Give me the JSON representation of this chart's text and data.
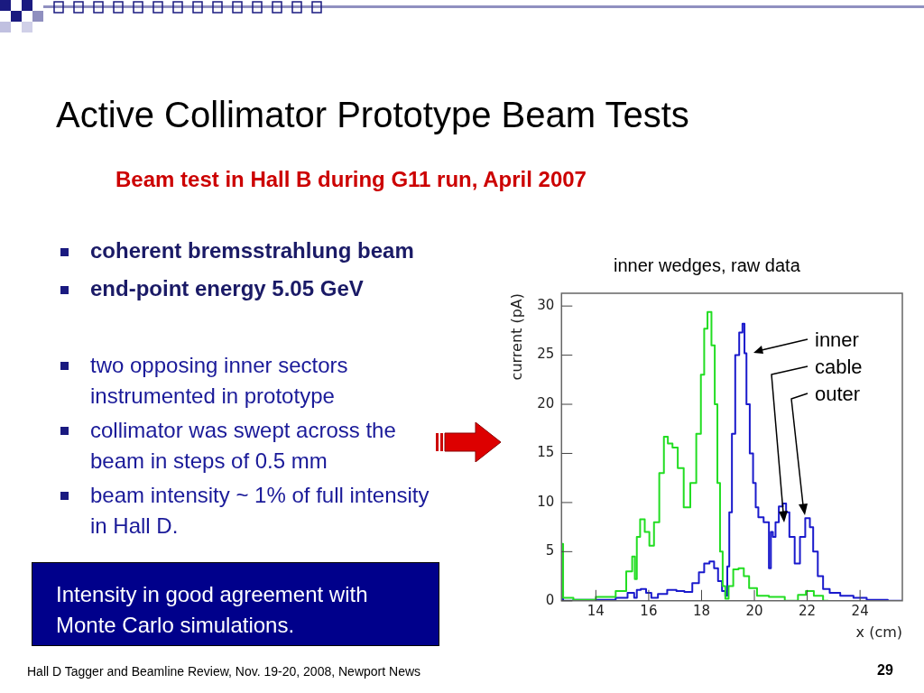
{
  "chart_data": {
    "type": "step",
    "title": "Active Collimator Prototype Beam Tests",
    "subtitle": "Beam test in Hall B during G11 run, April 2007",
    "xlabel": "x (cm)",
    "ylabel": "current (pA)",
    "xlim": [
      12.7,
      25.6
    ],
    "xticks": [
      14,
      16,
      18,
      20,
      22,
      24
    ],
    "ylim": [
      0,
      31.3
    ],
    "yticks": [
      0,
      5,
      10,
      15,
      20,
      25,
      30
    ],
    "grid": false,
    "legend": false,
    "series": [
      {
        "color": "#22dd22",
        "x": [
          12.72,
          12.8,
          13.5,
          14.5,
          15.0,
          15.3,
          15.45,
          15.5,
          15.6,
          15.75,
          15.95,
          16.1,
          16.3,
          16.5,
          16.65,
          16.8,
          17.0,
          17.2,
          17.45,
          17.7,
          17.9,
          18.05,
          18.15,
          18.3,
          18.45,
          18.55,
          18.65,
          18.75,
          18.85,
          18.95,
          19.1,
          19.3,
          19.5,
          19.7,
          19.9,
          20.3,
          20.8,
          21.5,
          21.8,
          22.1,
          22.4,
          22.8
        ],
        "values": [
          5.8,
          0.3,
          0.1,
          0.4,
          1.0,
          3.0,
          4.5,
          2.2,
          6.5,
          8.3,
          7.0,
          5.6,
          8.0,
          13,
          16.7,
          16.0,
          15.6,
          13.5,
          9.5,
          12,
          17,
          23,
          27.7,
          29.4,
          26,
          20,
          12,
          5,
          1.5,
          0.2,
          1.5,
          3.2,
          3.3,
          2.5,
          1.3,
          0.5,
          0.4,
          0.0,
          0.6,
          1.0,
          0.5,
          0.0
        ]
      },
      {
        "color": "#1a1acc",
        "x": [
          12.72,
          12.8,
          13.5,
          14.5,
          15.0,
          15.4,
          15.5,
          15.6,
          15.8,
          16.0,
          16.2,
          16.5,
          16.9,
          17.2,
          17.5,
          17.8,
          18.0,
          18.2,
          18.4,
          18.55,
          18.7,
          18.85,
          18.95,
          19.0,
          19.1,
          19.2,
          19.35,
          19.5,
          19.6,
          19.65,
          19.75,
          19.9,
          20.0,
          20.1,
          20.2,
          20.5,
          20.6,
          20.65,
          20.75,
          20.85,
          21.0,
          21.15,
          21.25,
          21.4,
          21.65,
          21.8,
          22.05,
          22.15,
          22.3,
          22.5,
          22.7,
          23.0,
          23.5,
          24.0,
          24.5,
          25.6
        ],
        "values": [
          1.0,
          0.0,
          0.1,
          0.1,
          0.3,
          0.8,
          0.3,
          1.1,
          1.2,
          0.8,
          0.3,
          0.7,
          1.1,
          1.0,
          0.9,
          1.8,
          2.9,
          3.8,
          4.0,
          3.3,
          2.0,
          1.0,
          0.5,
          3.5,
          9,
          17,
          25,
          27.3,
          28.2,
          25.2,
          20,
          15,
          12,
          9.5,
          8.5,
          8,
          3.3,
          7,
          6.5,
          8.0,
          9.6,
          9.9,
          9.0,
          6.5,
          3.8,
          6.5,
          8.4,
          7.5,
          5,
          2.5,
          1.2,
          0.8,
          0.5,
          0.3,
          0.1,
          0.0
        ]
      }
    ],
    "annotations": [
      "coherent bremsstrahlung beam",
      "end-point energy 5.05 GeV",
      "two opposing inner sectors instrumented in prototype",
      "collimator was swept across the beam in steps of 0.5 mm",
      "beam intensity ~ 1% of full intensity in Hall D.",
      "Intensity in good agreement with Monte Carlo simulations.",
      "inner wedges, raw data",
      "Hall D Tagger and Beamline Review, Nov. 19-20, 2008, Newport News",
      "29",
      "inner",
      "cable",
      "outer"
    ]
  }
}
